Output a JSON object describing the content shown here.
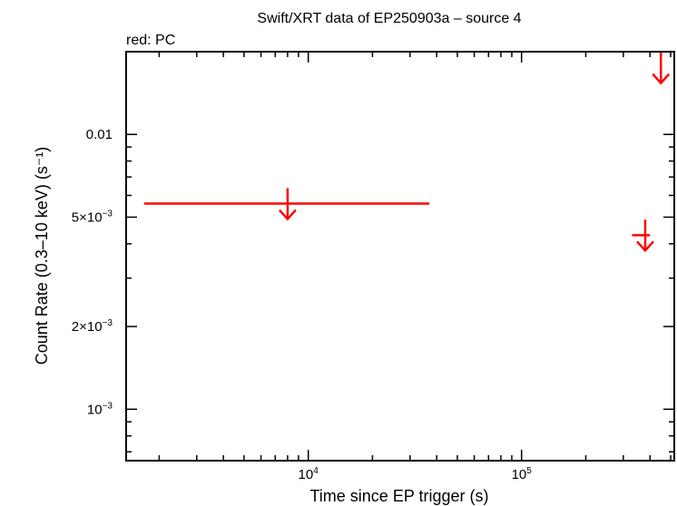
{
  "chart_data": {
    "type": "scatter",
    "title": "Swift/XRT data of EP250903a – source 4",
    "subtitle": "red: PC",
    "xlabel": "Time since EP trigger (s)",
    "ylabel": "Count Rate (0.3–10 keV) (s⁻¹)",
    "x_scale": "log",
    "y_scale": "log",
    "xlim": [
      1400,
      520000
    ],
    "ylim": [
      0.00065,
      0.02
    ],
    "x_ticks": [
      {
        "value": 10000,
        "base": "10",
        "exp": "4"
      },
      {
        "value": 100000,
        "base": "10",
        "exp": "5"
      }
    ],
    "y_ticks": [
      {
        "value": 0.01,
        "label": "0.01"
      },
      {
        "value": 0.005,
        "label": "5×10",
        "exp": "−3"
      },
      {
        "value": 0.002,
        "label": "2×10",
        "exp": "−3"
      },
      {
        "value": 0.001,
        "label": "10",
        "exp": "−3"
      }
    ],
    "series": [
      {
        "color": "#ff0000",
        "points": [
          {
            "x": 8000,
            "xmin": 1700,
            "xmax": 37000,
            "y": 0.0056,
            "upper_limit": true
          },
          {
            "x": 380000,
            "xmin": 330000,
            "xmax": 400000,
            "y": 0.0043,
            "upper_limit": true
          },
          {
            "x": 450000,
            "xmin": 450000,
            "xmax": 450000,
            "y": 0.0175,
            "upper_limit": true
          }
        ]
      }
    ]
  }
}
